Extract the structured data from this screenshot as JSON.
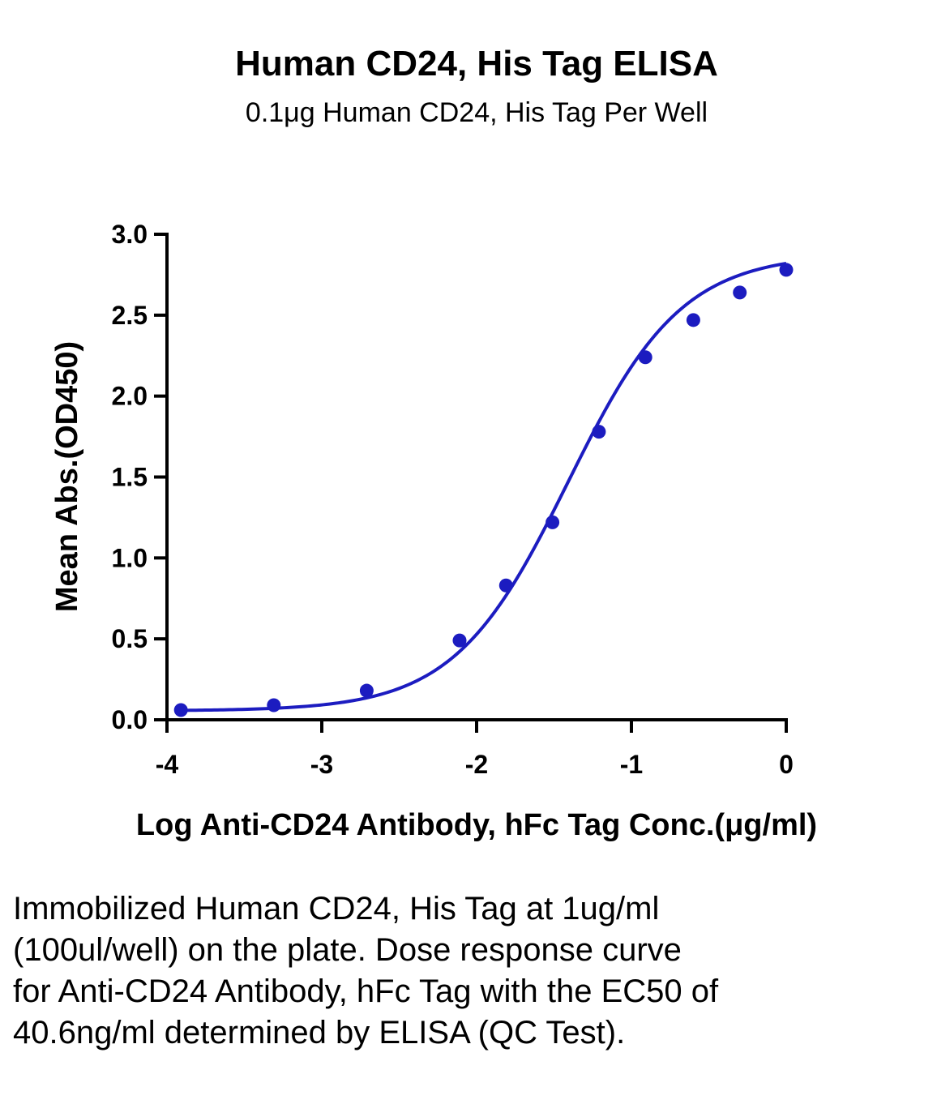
{
  "chart_data": {
    "type": "scatter",
    "title": "Human CD24, His Tag ELISA",
    "subtitle": "0.1μg Human CD24, His Tag Per Well",
    "xlabel": "Log Anti-CD24 Antibody, hFc Tag Conc.(μg/ml)",
    "ylabel": "Mean Abs.(OD450)",
    "xlim": [
      -4,
      0
    ],
    "ylim": [
      0,
      3
    ],
    "x_ticks": [
      -4,
      -3,
      -2,
      -1,
      0
    ],
    "x_tick_labels": [
      "-4",
      "-3",
      "-2",
      "-1",
      "0"
    ],
    "y_ticks": [
      0,
      0.5,
      1,
      1.5,
      2,
      2.5,
      3
    ],
    "y_tick_labels": [
      "0.0",
      "0.5",
      "1.0",
      "1.5",
      "2.0",
      "2.5",
      "3.0"
    ],
    "grid": false,
    "legend": "none",
    "fit": "four-parameter logistic",
    "series": [
      {
        "color": "#1c1cc0",
        "x": [
          -3.91,
          -3.31,
          -2.71,
          -2.11,
          -1.81,
          -1.51,
          -1.21,
          -0.91,
          -0.6,
          -0.3,
          0.0
        ],
        "y": [
          0.06,
          0.09,
          0.18,
          0.49,
          0.83,
          1.22,
          1.78,
          2.24,
          2.47,
          2.64,
          2.78
        ]
      }
    ]
  },
  "caption": "Immobilized Human CD24, His Tag at 1ug/ml (100ul/well) on the plate. Dose response curve for Anti-CD24 Antibody, hFc Tag with the EC50 of 40.6ng/ml determined by ELISA (QC Test)."
}
